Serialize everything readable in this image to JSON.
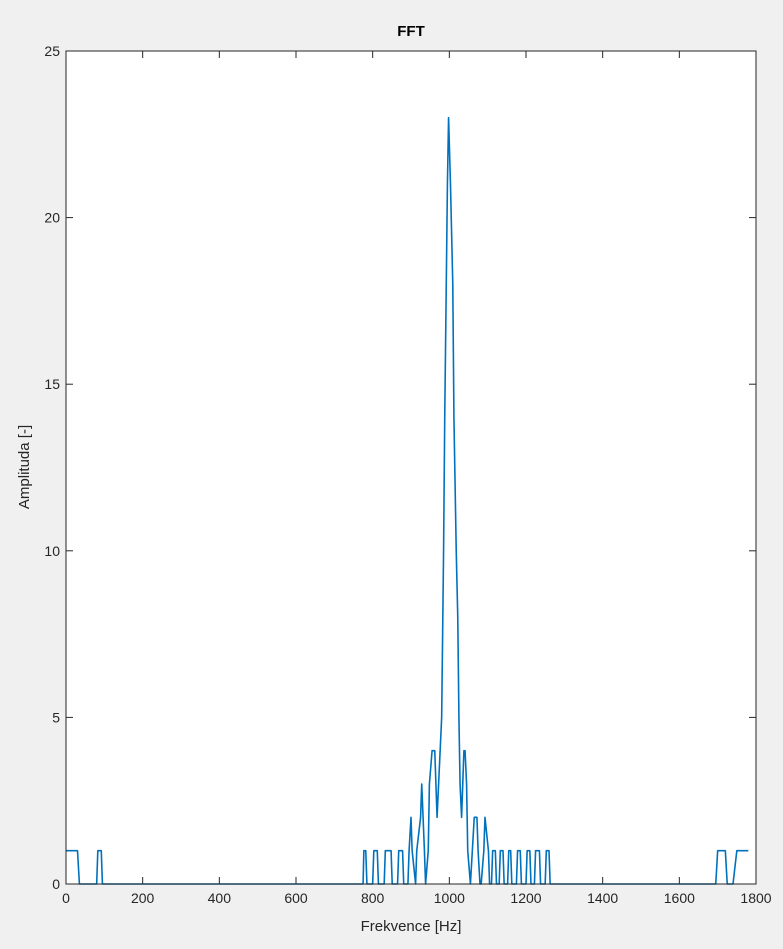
{
  "chart_data": {
    "type": "line",
    "title": "FFT",
    "xlabel": "Frekvence  [Hz]",
    "ylabel": "Amplituda [-]",
    "xlim": [
      0,
      1800
    ],
    "ylim": [
      0,
      25
    ],
    "xticks": [
      0,
      200,
      400,
      600,
      800,
      1000,
      1200,
      1400,
      1600,
      1800
    ],
    "yticks": [
      0,
      5,
      10,
      15,
      20,
      25
    ],
    "grid": false,
    "line_color": "#0072bd",
    "series": [
      {
        "x": [
          0,
          30,
          35,
          80,
          83,
          92,
          95,
          775,
          777,
          782,
          785,
          800,
          803,
          812,
          815,
          830,
          833,
          848,
          851,
          865,
          868,
          878,
          881,
          892,
          895,
          900,
          903,
          912,
          915,
          925,
          928,
          935,
          938,
          945,
          948,
          955,
          958,
          962,
          965,
          968,
          972,
          980,
          983,
          985,
          988,
          992,
          995,
          998,
          1003,
          1009,
          1012,
          1018,
          1022,
          1025,
          1028,
          1032,
          1035,
          1038,
          1041,
          1045,
          1048,
          1055,
          1060,
          1065,
          1068,
          1072,
          1075,
          1080,
          1083,
          1090,
          1093,
          1102,
          1105,
          1110,
          1113,
          1120,
          1123,
          1130,
          1133,
          1140,
          1143,
          1152,
          1155,
          1160,
          1163,
          1175,
          1178,
          1185,
          1188,
          1200,
          1203,
          1210,
          1213,
          1222,
          1225,
          1235,
          1238,
          1250,
          1253,
          1260,
          1263,
          1695,
          1700,
          1720,
          1725,
          1740,
          1750,
          1780
        ],
        "y": [
          1,
          1,
          0,
          0,
          1,
          1,
          0,
          0,
          1,
          1,
          0,
          0,
          1,
          1,
          0,
          0,
          1,
          1,
          0,
          0,
          1,
          1,
          0,
          0,
          1,
          2,
          1,
          0,
          1,
          2,
          3,
          1,
          0,
          1,
          3,
          4,
          4,
          4,
          3,
          2,
          3,
          5,
          8,
          10,
          14,
          18,
          21,
          23,
          21,
          18,
          14,
          10,
          8,
          5,
          3,
          2,
          3,
          4,
          4,
          3,
          1,
          0,
          1,
          2,
          2,
          2,
          1,
          0,
          0,
          1,
          2,
          1,
          0,
          0,
          1,
          1,
          0,
          0,
          1,
          1,
          0,
          0,
          1,
          1,
          0,
          0,
          1,
          1,
          0,
          0,
          1,
          1,
          0,
          0,
          1,
          1,
          0,
          0,
          1,
          1,
          0,
          0,
          1,
          1,
          0,
          0,
          1,
          1
        ]
      }
    ]
  }
}
